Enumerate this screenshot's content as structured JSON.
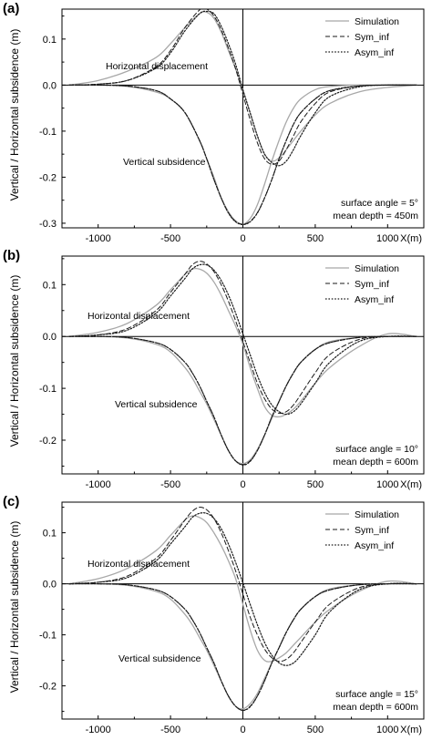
{
  "ylabel": "Vertical / Horizontal subsidence (m)",
  "xunit_label": "X(m)",
  "legend": [
    {
      "name": "Simulation",
      "color": "#a0a0a0",
      "dash": "solid"
    },
    {
      "name": "Sym_inf",
      "color": "#202020",
      "dash": "dashed"
    },
    {
      "name": "Asym_inf",
      "color": "#202020",
      "dash": "dotted"
    }
  ],
  "chart_data": [
    {
      "type": "line",
      "panel_label": "(a)",
      "xlim": [
        -1250,
        1250
      ],
      "ylim": [
        -0.31,
        0.165
      ],
      "xticks": [
        -1000,
        -500,
        0,
        500,
        1000
      ],
      "yticks": [
        0.1,
        0.0,
        -0.1,
        -0.2,
        -0.3
      ],
      "ytick_labels": [
        "0.1",
        "0.0",
        "-0.1",
        "-0.2",
        "-0.3"
      ],
      "annotations": [
        "Horizontal displacement",
        "Vertical subsidence"
      ],
      "info_lines": [
        "surface angle = 5°",
        "mean depth = 450m"
      ],
      "x": [
        -1200,
        -1000,
        -800,
        -600,
        -500,
        -400,
        -300,
        -250,
        -200,
        -150,
        -100,
        -50,
        0,
        50,
        100,
        150,
        200,
        250,
        300,
        350,
        400,
        500,
        600,
        800,
        1000,
        1200
      ],
      "series": [
        {
          "name": "Simulation",
          "horizontal": [
            0.0,
            0.01,
            0.03,
            0.06,
            0.09,
            0.125,
            0.155,
            0.158,
            0.145,
            0.115,
            0.075,
            0.035,
            -0.01,
            -0.06,
            -0.11,
            -0.15,
            -0.165,
            -0.158,
            -0.14,
            -0.12,
            -0.1,
            -0.065,
            -0.04,
            -0.015,
            -0.005,
            0.0
          ],
          "vertical": [
            0.0,
            0.0,
            -0.003,
            -0.015,
            -0.03,
            -0.06,
            -0.12,
            -0.16,
            -0.2,
            -0.245,
            -0.275,
            -0.295,
            -0.302,
            -0.29,
            -0.26,
            -0.215,
            -0.165,
            -0.12,
            -0.08,
            -0.05,
            -0.03,
            -0.01,
            -0.003,
            0.0,
            0.0,
            0.0
          ]
        },
        {
          "name": "Sym_inf",
          "horizontal": [
            0.0,
            0.002,
            0.01,
            0.04,
            0.075,
            0.125,
            0.163,
            0.165,
            0.15,
            0.12,
            0.08,
            0.035,
            -0.02,
            -0.075,
            -0.125,
            -0.16,
            -0.172,
            -0.165,
            -0.14,
            -0.11,
            -0.08,
            -0.04,
            -0.015,
            -0.002,
            0.0,
            0.0
          ],
          "vertical": [
            0.0,
            0.0,
            -0.002,
            -0.012,
            -0.03,
            -0.06,
            -0.12,
            -0.16,
            -0.205,
            -0.245,
            -0.277,
            -0.296,
            -0.302,
            -0.296,
            -0.277,
            -0.245,
            -0.205,
            -0.16,
            -0.12,
            -0.085,
            -0.06,
            -0.03,
            -0.012,
            -0.002,
            0.0,
            0.0
          ]
        },
        {
          "name": "Asym_inf",
          "horizontal": [
            0.0,
            0.002,
            0.01,
            0.037,
            0.07,
            0.118,
            0.155,
            0.16,
            0.155,
            0.128,
            0.09,
            0.045,
            -0.01,
            -0.06,
            -0.11,
            -0.15,
            -0.168,
            -0.175,
            -0.165,
            -0.14,
            -0.11,
            -0.06,
            -0.025,
            -0.004,
            0.0,
            0.0
          ],
          "vertical": [
            0.0,
            0.0,
            -0.002,
            -0.012,
            -0.03,
            -0.06,
            -0.12,
            -0.16,
            -0.205,
            -0.245,
            -0.278,
            -0.297,
            -0.303,
            -0.297,
            -0.278,
            -0.245,
            -0.205,
            -0.16,
            -0.12,
            -0.085,
            -0.06,
            -0.03,
            -0.012,
            -0.002,
            0.0,
            0.0
          ]
        }
      ]
    },
    {
      "type": "line",
      "panel_label": "(b)",
      "xlim": [
        -1250,
        1250
      ],
      "ylim": [
        -0.265,
        0.155
      ],
      "xticks": [
        -1000,
        -500,
        0,
        500,
        1000
      ],
      "yticks": [
        0.1,
        0.0,
        -0.1,
        -0.2
      ],
      "ytick_labels": [
        "0.1",
        "0.0",
        "-0.1",
        "-0.2"
      ],
      "annotations": [
        "Horizontal displacement",
        "Vertical subsidence"
      ],
      "info_lines": [
        "surface angle = 10°",
        "mean depth = 600m"
      ],
      "x": [
        -1200,
        -1000,
        -800,
        -600,
        -500,
        -400,
        -350,
        -300,
        -250,
        -200,
        -150,
        -100,
        -50,
        0,
        50,
        100,
        150,
        200,
        250,
        300,
        350,
        400,
        500,
        600,
        800,
        1000,
        1200
      ],
      "series": [
        {
          "name": "Simulation",
          "horizontal": [
            0.0,
            0.008,
            0.025,
            0.06,
            0.09,
            0.12,
            0.13,
            0.13,
            0.122,
            0.105,
            0.08,
            0.05,
            0.02,
            -0.015,
            -0.06,
            -0.1,
            -0.135,
            -0.152,
            -0.155,
            -0.15,
            -0.14,
            -0.125,
            -0.09,
            -0.06,
            -0.02,
            0.005,
            0.0
          ],
          "vertical": [
            0.0,
            0.0,
            -0.003,
            -0.015,
            -0.03,
            -0.06,
            -0.08,
            -0.105,
            -0.13,
            -0.16,
            -0.19,
            -0.22,
            -0.24,
            -0.245,
            -0.238,
            -0.218,
            -0.19,
            -0.158,
            -0.125,
            -0.095,
            -0.07,
            -0.05,
            -0.025,
            -0.01,
            -0.002,
            0.0,
            0.0
          ]
        },
        {
          "name": "Sym_inf",
          "horizontal": [
            0.0,
            0.003,
            0.015,
            0.05,
            0.085,
            0.12,
            0.138,
            0.145,
            0.14,
            0.125,
            0.1,
            0.068,
            0.03,
            -0.01,
            -0.05,
            -0.09,
            -0.12,
            -0.14,
            -0.148,
            -0.145,
            -0.132,
            -0.112,
            -0.07,
            -0.035,
            -0.006,
            0.0,
            0.0
          ],
          "vertical": [
            0.0,
            0.0,
            -0.002,
            -0.012,
            -0.025,
            -0.05,
            -0.07,
            -0.095,
            -0.125,
            -0.155,
            -0.19,
            -0.22,
            -0.24,
            -0.247,
            -0.24,
            -0.22,
            -0.19,
            -0.155,
            -0.125,
            -0.095,
            -0.07,
            -0.05,
            -0.025,
            -0.012,
            -0.002,
            0.0,
            0.0
          ]
        },
        {
          "name": "Asym_inf",
          "horizontal": [
            0.0,
            0.003,
            0.012,
            0.045,
            0.078,
            0.112,
            0.13,
            0.138,
            0.138,
            0.128,
            0.108,
            0.08,
            0.045,
            0.005,
            -0.035,
            -0.075,
            -0.108,
            -0.132,
            -0.145,
            -0.15,
            -0.145,
            -0.13,
            -0.09,
            -0.05,
            -0.01,
            0.0,
            0.0
          ],
          "vertical": [
            0.0,
            0.0,
            -0.002,
            -0.012,
            -0.025,
            -0.05,
            -0.07,
            -0.095,
            -0.125,
            -0.155,
            -0.19,
            -0.22,
            -0.24,
            -0.248,
            -0.241,
            -0.22,
            -0.19,
            -0.155,
            -0.125,
            -0.095,
            -0.07,
            -0.05,
            -0.025,
            -0.012,
            -0.002,
            0.0,
            0.0
          ]
        }
      ]
    },
    {
      "type": "line",
      "panel_label": "(c)",
      "xlim": [
        -1250,
        1250
      ],
      "ylim": [
        -0.265,
        0.16
      ],
      "xticks": [
        -1000,
        -500,
        0,
        500,
        1000
      ],
      "yticks": [
        0.1,
        0.0,
        -0.1,
        -0.2
      ],
      "ytick_labels": [
        "0.1",
        "0.0",
        "-0.1",
        "-0.2"
      ],
      "annotations": [
        "Horizontal displacement",
        "Vertical subsidence"
      ],
      "info_lines": [
        "surface angle = 15°",
        "mean depth = 600m"
      ],
      "x": [
        -1200,
        -1000,
        -800,
        -600,
        -500,
        -400,
        -350,
        -300,
        -250,
        -200,
        -150,
        -100,
        -50,
        0,
        50,
        100,
        150,
        200,
        250,
        300,
        350,
        400,
        500,
        600,
        800,
        1000,
        1200
      ],
      "series": [
        {
          "name": "Simulation",
          "horizontal": [
            0.0,
            0.01,
            0.03,
            0.065,
            0.095,
            0.125,
            0.133,
            0.13,
            0.12,
            0.1,
            0.075,
            0.045,
            0.01,
            -0.04,
            -0.09,
            -0.13,
            -0.15,
            -0.152,
            -0.145,
            -0.135,
            -0.12,
            -0.105,
            -0.075,
            -0.05,
            -0.015,
            0.005,
            0.0
          ],
          "vertical": [
            0.0,
            0.0,
            -0.003,
            -0.015,
            -0.03,
            -0.06,
            -0.08,
            -0.105,
            -0.13,
            -0.16,
            -0.19,
            -0.22,
            -0.24,
            -0.245,
            -0.235,
            -0.215,
            -0.185,
            -0.155,
            -0.125,
            -0.095,
            -0.07,
            -0.05,
            -0.025,
            -0.01,
            -0.002,
            0.0,
            0.0
          ]
        },
        {
          "name": "Sym_inf",
          "horizontal": [
            0.0,
            0.003,
            0.015,
            0.05,
            0.085,
            0.125,
            0.142,
            0.15,
            0.145,
            0.128,
            0.1,
            0.065,
            0.025,
            -0.02,
            -0.065,
            -0.1,
            -0.128,
            -0.145,
            -0.152,
            -0.148,
            -0.135,
            -0.115,
            -0.075,
            -0.04,
            -0.008,
            0.0,
            0.0
          ],
          "vertical": [
            0.0,
            0.0,
            -0.002,
            -0.012,
            -0.025,
            -0.05,
            -0.07,
            -0.095,
            -0.125,
            -0.155,
            -0.19,
            -0.22,
            -0.24,
            -0.248,
            -0.24,
            -0.22,
            -0.19,
            -0.155,
            -0.125,
            -0.095,
            -0.07,
            -0.05,
            -0.025,
            -0.012,
            -0.002,
            0.0,
            0.0
          ]
        },
        {
          "name": "Asym_inf",
          "horizontal": [
            0.0,
            0.003,
            0.012,
            0.045,
            0.078,
            0.112,
            0.13,
            0.138,
            0.138,
            0.128,
            0.108,
            0.078,
            0.042,
            0.002,
            -0.04,
            -0.08,
            -0.115,
            -0.14,
            -0.155,
            -0.16,
            -0.155,
            -0.14,
            -0.1,
            -0.055,
            -0.012,
            0.0,
            0.0
          ],
          "vertical": [
            0.0,
            0.0,
            -0.002,
            -0.012,
            -0.025,
            -0.05,
            -0.07,
            -0.095,
            -0.125,
            -0.155,
            -0.19,
            -0.22,
            -0.24,
            -0.248,
            -0.241,
            -0.22,
            -0.19,
            -0.155,
            -0.125,
            -0.095,
            -0.07,
            -0.05,
            -0.025,
            -0.012,
            -0.002,
            0.0,
            0.0
          ]
        }
      ]
    }
  ]
}
